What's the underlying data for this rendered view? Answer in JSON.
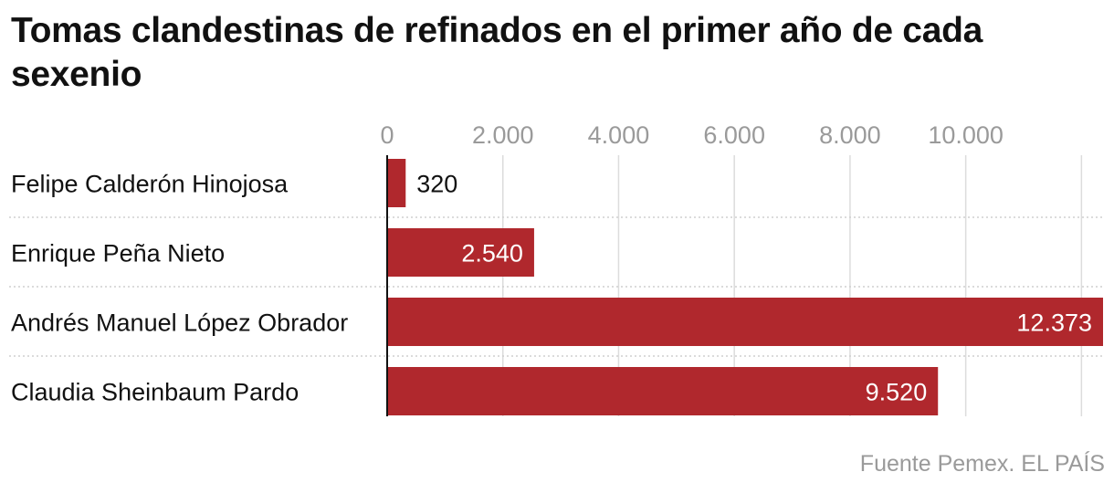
{
  "chart_data": {
    "type": "bar",
    "orientation": "horizontal",
    "title": "Tomas clandestinas de refinados en el primer año de cada sexenio",
    "categories": [
      "Felipe Calderón Hinojosa",
      "Enrique Peña Nieto",
      "Andrés Manuel López Obrador",
      "Claudia Sheinbaum Pardo"
    ],
    "values": [
      320,
      2540,
      12373,
      9520
    ],
    "value_labels": [
      "320",
      "2.540",
      "12.373",
      "9.520"
    ],
    "xlim": [
      0,
      12373
    ],
    "xticks": [
      0,
      2000,
      4000,
      6000,
      8000,
      10000,
      12000
    ],
    "xtick_labels": [
      "0",
      "2.000",
      "4.000",
      "6.000",
      "8.000",
      "10.000",
      ""
    ],
    "grid": true,
    "legend": "none",
    "source": "Fuente Pemex. EL PAÍS",
    "colors": {
      "bar": "#b0282d",
      "grid": "#dcdcdc",
      "tick_text": "#9a9a9a",
      "label_text": "#111111",
      "axis": "#111111"
    }
  }
}
